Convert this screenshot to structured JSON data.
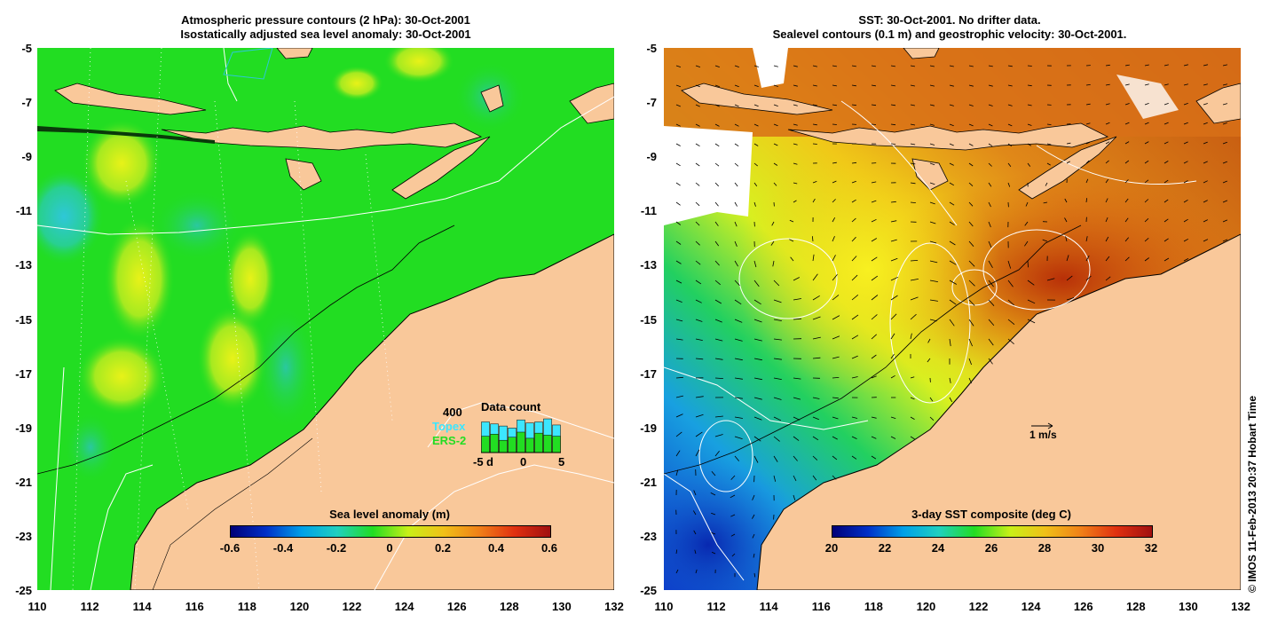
{
  "left_panel": {
    "title_line1": "Atmospheric pressure contours (2 hPa): 30-Oct-2001",
    "title_line2": "Isostatically adjusted sea level anomaly: 30-Oct-2001",
    "colorbar": {
      "title": "Sea level anomaly (m)",
      "ticks": [
        "-0.6",
        "-0.4",
        "-0.2",
        "0",
        "0.2",
        "0.4",
        "0.6"
      ]
    },
    "inset": {
      "title": "Data count",
      "max_label": "400",
      "series": [
        {
          "name": "Topex",
          "color": "#3ce6ff",
          "values": [
            300,
            280,
            260,
            240,
            320,
            290,
            300,
            330,
            270
          ]
        },
        {
          "name": "ERS-2",
          "color": "#22dd22",
          "values": [
            160,
            180,
            120,
            150,
            200,
            140,
            190,
            170,
            160
          ]
        }
      ],
      "x_ticks": [
        "-5",
        "d",
        "0",
        "5"
      ]
    }
  },
  "right_panel": {
    "title_line1": "SST: 30-Oct-2001. No drifter data.",
    "title_line2": "Sealevel contours (0.1 m) and geostrophic velocity: 30-Oct-2001.",
    "colorbar": {
      "title": "3-day SST composite (deg C)",
      "ticks": [
        "20",
        "22",
        "24",
        "26",
        "28",
        "30",
        "32"
      ]
    },
    "velocity_scale_label": "1 m/s"
  },
  "y_axis_ticks": [
    "-5",
    "-7",
    "-9",
    "-11",
    "-13",
    "-15",
    "-17",
    "-19",
    "-21",
    "-23",
    "-25"
  ],
  "x_axis_ticks": [
    "110",
    "112",
    "114",
    "116",
    "118",
    "120",
    "122",
    "124",
    "126",
    "128",
    "130",
    "132"
  ],
  "credit": "© IMOS 11-Feb-2013 20:37 Hobart Time",
  "colors": {
    "land": "#f9c89a",
    "sla_ocean": "#22dd22",
    "sst_ocean": "#e07a10"
  }
}
